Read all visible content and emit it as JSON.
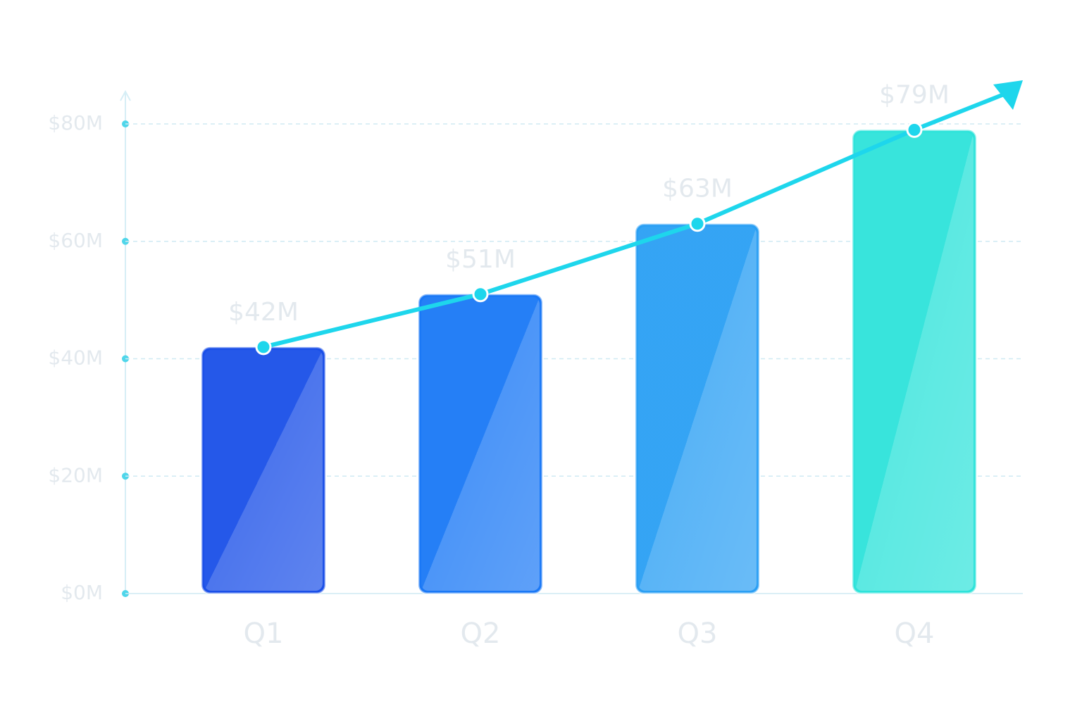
{
  "chart_data": {
    "type": "bar",
    "categories": [
      "Q1",
      "Q2",
      "Q3",
      "Q4"
    ],
    "values": [
      42,
      51,
      63,
      79
    ],
    "value_labels": [
      "$42M",
      "$51M",
      "$63M",
      "$79M"
    ],
    "colors": [
      "#1a4fe8",
      "#1a78f6",
      "#2a9ff4",
      "#2ee3da"
    ],
    "trend_color": "#1ed6ec",
    "ylim": [
      0,
      80
    ],
    "yticks": [
      {
        "value": 0,
        "label": "$0M"
      },
      {
        "value": 20,
        "label": "$20M"
      },
      {
        "value": 40,
        "label": "$40M"
      },
      {
        "value": 60,
        "label": "$60M"
      },
      {
        "value": 80,
        "label": "$80M"
      }
    ],
    "grid": true
  }
}
